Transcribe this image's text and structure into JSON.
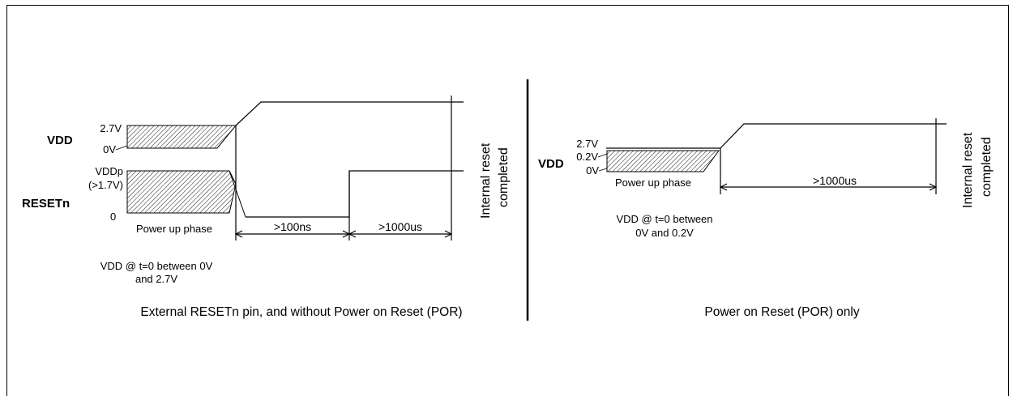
{
  "left": {
    "vdd_label": "VDD",
    "vdd_high": "2.7V",
    "vdd_low": "0V",
    "reset_label": "RESETn",
    "reset_high": "VDDp",
    "reset_high_note": "(>1.7V)",
    "reset_low": "0",
    "phase": "Power up phase",
    "delay_1": ">100ns",
    "delay_2": ">1000us",
    "note_line_1": "VDD @ t=0 between 0V",
    "note_line_2": "and 2.7V",
    "internal_line_1": "Internal reset",
    "internal_line_2": "completed",
    "caption": "External RESETn pin, and without Power on Reset (POR)"
  },
  "right": {
    "vdd_label": "VDD",
    "vdd_high": "2.7V",
    "vdd_mid": "0.2V",
    "vdd_low": "0V",
    "phase": "Power up phase",
    "delay": ">1000us",
    "note_line_1": "VDD @ t=0 between",
    "note_line_2": "0V and 0.2V",
    "internal_line_1": "Internal reset",
    "internal_line_2": "completed",
    "caption": "Power on Reset (POR) only"
  }
}
